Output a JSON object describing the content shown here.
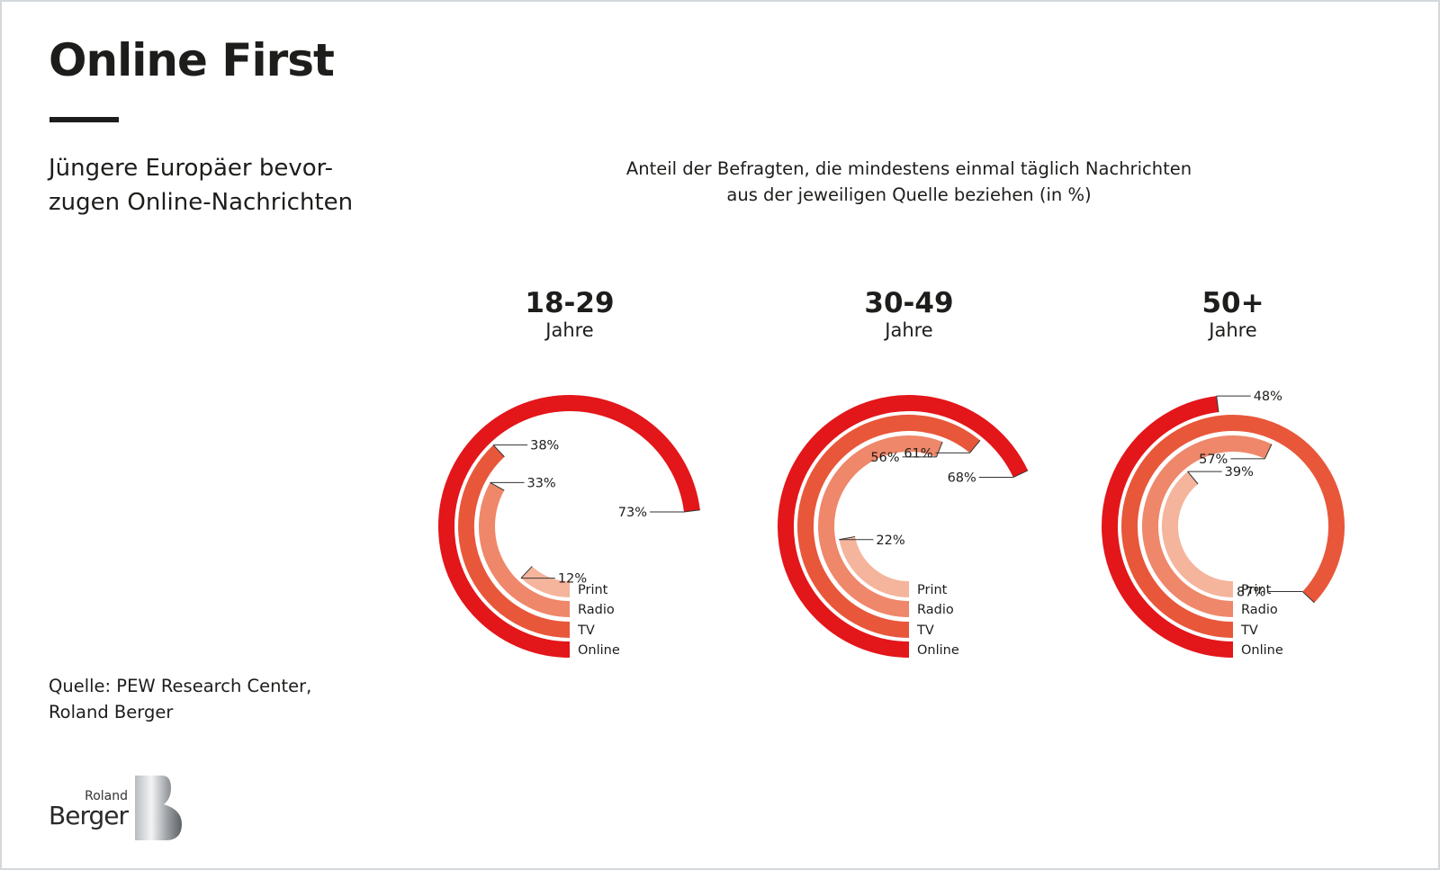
{
  "header": {
    "title": "Online First",
    "subtitle_lines": [
      "Jüngere Europäer bevor-",
      "zugen Online-Nachrichten"
    ]
  },
  "chart_heading_lines": [
    "Anteil der Befragten, die mindestens einmal täglich Nachrichten",
    "aus der jeweiligen Quelle beziehen (in %)"
  ],
  "source_lines": [
    "Quelle: PEW Research Center,",
    "Roland Berger"
  ],
  "logo": {
    "small": "Roland",
    "large": "Berger",
    "mark": "B"
  },
  "colors": {
    "Online": "#E3161A",
    "TV": "#E8573A",
    "Radio": "#EF876A",
    "Print": "#F5B49C"
  },
  "chart_data": {
    "type": "radial-bar",
    "title": "Anteil der Befragten, die mindestens einmal täglich Nachrichten aus der jeweiligen Quelle beziehen (in %)",
    "unit": "%",
    "scale_max": 100,
    "series_order_inner_to_outer": [
      "Print",
      "Radio",
      "TV",
      "Online"
    ],
    "groups": [
      {
        "label": "18-29",
        "sublabel": "Jahre",
        "values": {
          "Print": 12,
          "Radio": 33,
          "TV": 38,
          "Online": 73
        }
      },
      {
        "label": "30-49",
        "sublabel": "Jahre",
        "values": {
          "Print": 22,
          "Radio": 56,
          "TV": 61,
          "Online": 68
        }
      },
      {
        "label": "50+",
        "sublabel": "Jahre",
        "values": {
          "Print": 39,
          "Radio": 57,
          "TV": 87,
          "Online": 48
        }
      }
    ]
  }
}
